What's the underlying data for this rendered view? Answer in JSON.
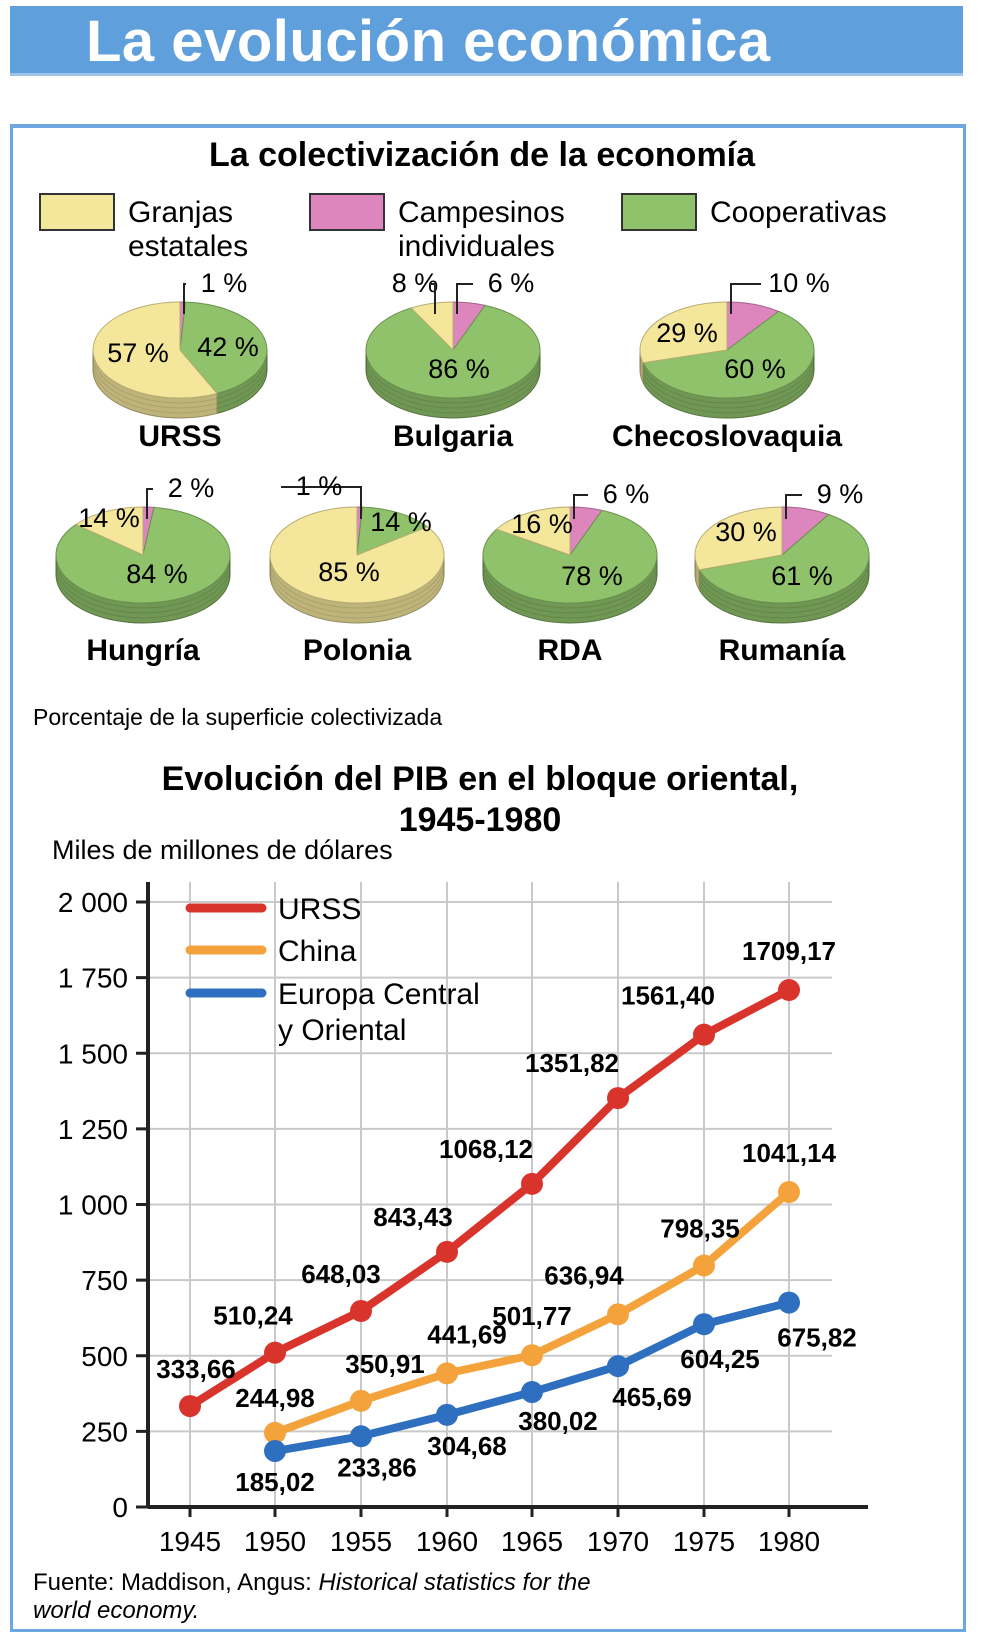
{
  "header": {
    "title": "La evolución económica"
  },
  "colectivizacion": {
    "title": "La colectivización de la economía",
    "legend": [
      {
        "lines": [
          "Granjas",
          "estatales"
        ],
        "color": "#f4e79c"
      },
      {
        "lines": [
          "Campesinos",
          "individuales"
        ],
        "color": "#dd85bd"
      },
      {
        "lines": [
          "Cooperativas"
        ],
        "color": "#8fc26a"
      }
    ],
    "note": "Porcentaje de la superficie colectivizada"
  },
  "chart_data": [
    {
      "type": "pie",
      "title": "La colectivización de la economía",
      "categories": [
        "Granjas estatales",
        "Campesinos individuales",
        "Cooperativas"
      ],
      "colors": [
        "#f4e79c",
        "#dd85bd",
        "#8fc26a"
      ],
      "pies": [
        {
          "name": "URSS",
          "values": [
            57,
            1,
            42
          ],
          "labels": [
            "57 %",
            "1 %",
            "42 %"
          ]
        },
        {
          "name": "Bulgaria",
          "values": [
            8,
            6,
            86
          ],
          "labels": [
            "8 %",
            "6 %",
            "86 %"
          ]
        },
        {
          "name": "Checoslovaquia",
          "values": [
            29,
            10,
            60
          ],
          "labels": [
            "29 %",
            "10 %",
            "60 %"
          ]
        },
        {
          "name": "Hungría",
          "values": [
            14,
            2,
            84
          ],
          "labels": [
            "14 %",
            "2 %",
            "84 %"
          ]
        },
        {
          "name": "Polonia",
          "values": [
            85,
            1,
            14
          ],
          "labels": [
            "85 %",
            "1 %",
            "14 %"
          ]
        },
        {
          "name": "RDA",
          "values": [
            16,
            6,
            78
          ],
          "labels": [
            "16 %",
            "6 %",
            "78 %"
          ]
        },
        {
          "name": "Rumanía",
          "values": [
            30,
            9,
            61
          ],
          "labels": [
            "30 %",
            "9 %",
            "61 %"
          ]
        }
      ]
    },
    {
      "type": "line",
      "title": "Evolución del PIB en el bloque oriental,",
      "title2": "1945-1980",
      "ylabel": "Miles de millones de dólares",
      "xlabel": "",
      "ylim": [
        0,
        2000
      ],
      "yticks": [
        0,
        250,
        500,
        750,
        1000,
        1250,
        1500,
        1750,
        2000
      ],
      "ytick_labels": [
        "0",
        "250",
        "500",
        "750",
        "1 000",
        "1 250",
        "1 500",
        "1 750",
        "2 000"
      ],
      "x": [
        1945,
        1950,
        1955,
        1960,
        1965,
        1970,
        1975,
        1980
      ],
      "grid": true,
      "legend_position": "top-left",
      "series": [
        {
          "name": "URSS",
          "color": "#d8342c",
          "x": [
            1945,
            1950,
            1955,
            1960,
            1965,
            1970,
            1975,
            1980
          ],
          "values": [
            333.66,
            510.24,
            648.03,
            843.43,
            1068.12,
            1351.82,
            1561.4,
            1709.17
          ],
          "labels": [
            "333,66",
            "510,24",
            "648,03",
            "843,43",
            "1068,12",
            "1351,82",
            "1561,40",
            "1709,17"
          ]
        },
        {
          "name": "China",
          "color": "#f4a23c",
          "x": [
            1950,
            1955,
            1960,
            1965,
            1970,
            1975,
            1980
          ],
          "values": [
            244.98,
            350.91,
            441.69,
            501.77,
            636.94,
            798.35,
            1041.14
          ],
          "labels": [
            "244,98",
            "350,91",
            "441,69",
            "501,77",
            "636,94",
            "798,35",
            "1041,14"
          ]
        },
        {
          "name": "Europa Central y Oriental",
          "name_lines": [
            "Europa Central",
            "y Oriental"
          ],
          "color": "#2e6fc0",
          "x": [
            1950,
            1955,
            1960,
            1965,
            1970,
            1975,
            1980
          ],
          "values": [
            185.02,
            233.86,
            304.68,
            380.02,
            465.69,
            604.25,
            675.82
          ],
          "labels": [
            "185,02",
            "233,86",
            "304,68",
            "380,02",
            "465,69",
            "604,25",
            "675,82"
          ]
        }
      ]
    }
  ],
  "source": {
    "prefix": "Fuente: Maddison, Angus: ",
    "italic1": "Historical statistics for the",
    "italic2": "world economy."
  }
}
